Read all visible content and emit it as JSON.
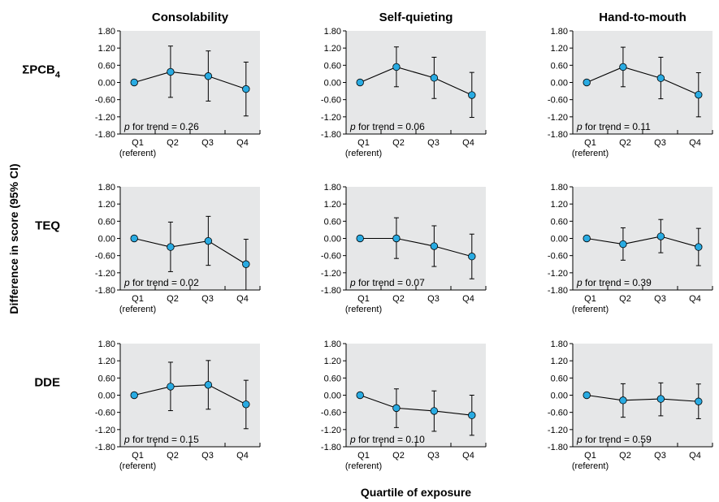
{
  "figure": {
    "ylabel": "Difference in score (95% CI)",
    "xlabel": "Quartile of exposure",
    "column_titles": [
      "Consolability",
      "Self-quieting",
      "Hand-to-mouth"
    ],
    "row_labels": [
      {
        "main": "ΣPCB",
        "sub": "4"
      },
      {
        "main": "TEQ",
        "sub": ""
      },
      {
        "main": "DDE",
        "sub": ""
      }
    ],
    "x_ticks": [
      "Q1",
      "Q2",
      "Q3",
      "Q4"
    ],
    "x_sub_label": "(referent)",
    "y_ticks": [
      "1.80",
      "1.20",
      "0.60",
      "0.00",
      "-0.60",
      "-1.20",
      "-1.80"
    ],
    "ptrend_prefix": "p",
    "colors": {
      "panel_bg": "#e6e7e8",
      "marker": "#29abe2",
      "line": "#000000"
    }
  },
  "chart_data": [
    {
      "type": "line",
      "row": "ΣPCB4",
      "column": "Consolability",
      "categories": [
        "Q1",
        "Q2",
        "Q3",
        "Q4"
      ],
      "values": [
        0.0,
        0.37,
        0.22,
        -0.23
      ],
      "ci_lower": [
        0.0,
        -0.52,
        -0.65,
        -1.17
      ],
      "ci_upper": [
        0.0,
        1.27,
        1.1,
        0.71
      ],
      "ylim": [
        -1.8,
        1.8
      ],
      "annotation": " for trend = 0.26"
    },
    {
      "type": "line",
      "row": "ΣPCB4",
      "column": "Self-quieting",
      "categories": [
        "Q1",
        "Q2",
        "Q3",
        "Q4"
      ],
      "values": [
        0.0,
        0.54,
        0.16,
        -0.44
      ],
      "ci_lower": [
        0.0,
        -0.15,
        -0.56,
        -1.22
      ],
      "ci_upper": [
        0.0,
        1.24,
        0.88,
        0.35
      ],
      "ylim": [
        -1.8,
        1.8
      ],
      "annotation": " for trend = 0.06"
    },
    {
      "type": "line",
      "row": "ΣPCB4",
      "column": "Hand-to-mouth",
      "categories": [
        "Q1",
        "Q2",
        "Q3",
        "Q4"
      ],
      "values": [
        0.0,
        0.54,
        0.15,
        -0.43
      ],
      "ci_lower": [
        0.0,
        -0.15,
        -0.57,
        -1.2
      ],
      "ci_upper": [
        0.0,
        1.23,
        0.88,
        0.34
      ],
      "ylim": [
        -1.8,
        1.8
      ],
      "annotation": " for trend = 0.11"
    },
    {
      "type": "line",
      "row": "TEQ",
      "column": "Consolability",
      "categories": [
        "Q1",
        "Q2",
        "Q3",
        "Q4"
      ],
      "values": [
        0.0,
        -0.3,
        -0.09,
        -0.9
      ],
      "ci_lower": [
        0.0,
        -1.16,
        -0.94,
        -1.8
      ],
      "ci_upper": [
        0.0,
        0.57,
        0.77,
        -0.03
      ],
      "ylim": [
        -1.8,
        1.8
      ],
      "annotation": " for trend = 0.02"
    },
    {
      "type": "line",
      "row": "TEQ",
      "column": "Self-quieting",
      "categories": [
        "Q1",
        "Q2",
        "Q3",
        "Q4"
      ],
      "values": [
        0.0,
        0.0,
        -0.27,
        -0.63
      ],
      "ci_lower": [
        0.0,
        -0.7,
        -0.98,
        -1.41
      ],
      "ci_upper": [
        0.0,
        0.72,
        0.44,
        0.15
      ],
      "ylim": [
        -1.8,
        1.8
      ],
      "annotation": " for trend = 0.07"
    },
    {
      "type": "line",
      "row": "TEQ",
      "column": "Hand-to-mouth",
      "categories": [
        "Q1",
        "Q2",
        "Q3",
        "Q4"
      ],
      "values": [
        0.0,
        -0.2,
        0.07,
        -0.3
      ],
      "ci_lower": [
        0.0,
        -0.76,
        -0.5,
        -0.95
      ],
      "ci_upper": [
        0.0,
        0.37,
        0.66,
        0.35
      ],
      "ylim": [
        -1.8,
        1.8
      ],
      "annotation": " for trend = 0.39"
    },
    {
      "type": "line",
      "row": "DDE",
      "column": "Consolability",
      "categories": [
        "Q1",
        "Q2",
        "Q3",
        "Q4"
      ],
      "values": [
        0.0,
        0.3,
        0.36,
        -0.32
      ],
      "ci_lower": [
        0.0,
        -0.54,
        -0.49,
        -1.17
      ],
      "ci_upper": [
        0.0,
        1.15,
        1.21,
        0.52
      ],
      "ylim": [
        -1.8,
        1.8
      ],
      "annotation": " for trend = 0.15"
    },
    {
      "type": "line",
      "row": "DDE",
      "column": "Self-quieting",
      "categories": [
        "Q1",
        "Q2",
        "Q3",
        "Q4"
      ],
      "values": [
        0.0,
        -0.45,
        -0.55,
        -0.7
      ],
      "ci_lower": [
        0.0,
        -1.13,
        -1.26,
        -1.4
      ],
      "ci_upper": [
        0.0,
        0.22,
        0.15,
        0.0
      ],
      "ylim": [
        -1.8,
        1.8
      ],
      "annotation": " for trend = 0.10"
    },
    {
      "type": "line",
      "row": "DDE",
      "column": "Hand-to-mouth",
      "categories": [
        "Q1",
        "Q2",
        "Q3",
        "Q4"
      ],
      "values": [
        0.0,
        -0.18,
        -0.13,
        -0.22
      ],
      "ci_lower": [
        0.0,
        -0.77,
        -0.72,
        -0.82
      ],
      "ci_upper": [
        0.0,
        0.4,
        0.43,
        0.39
      ],
      "ylim": [
        -1.8,
        1.8
      ],
      "annotation": " for trend = 0.59"
    }
  ]
}
